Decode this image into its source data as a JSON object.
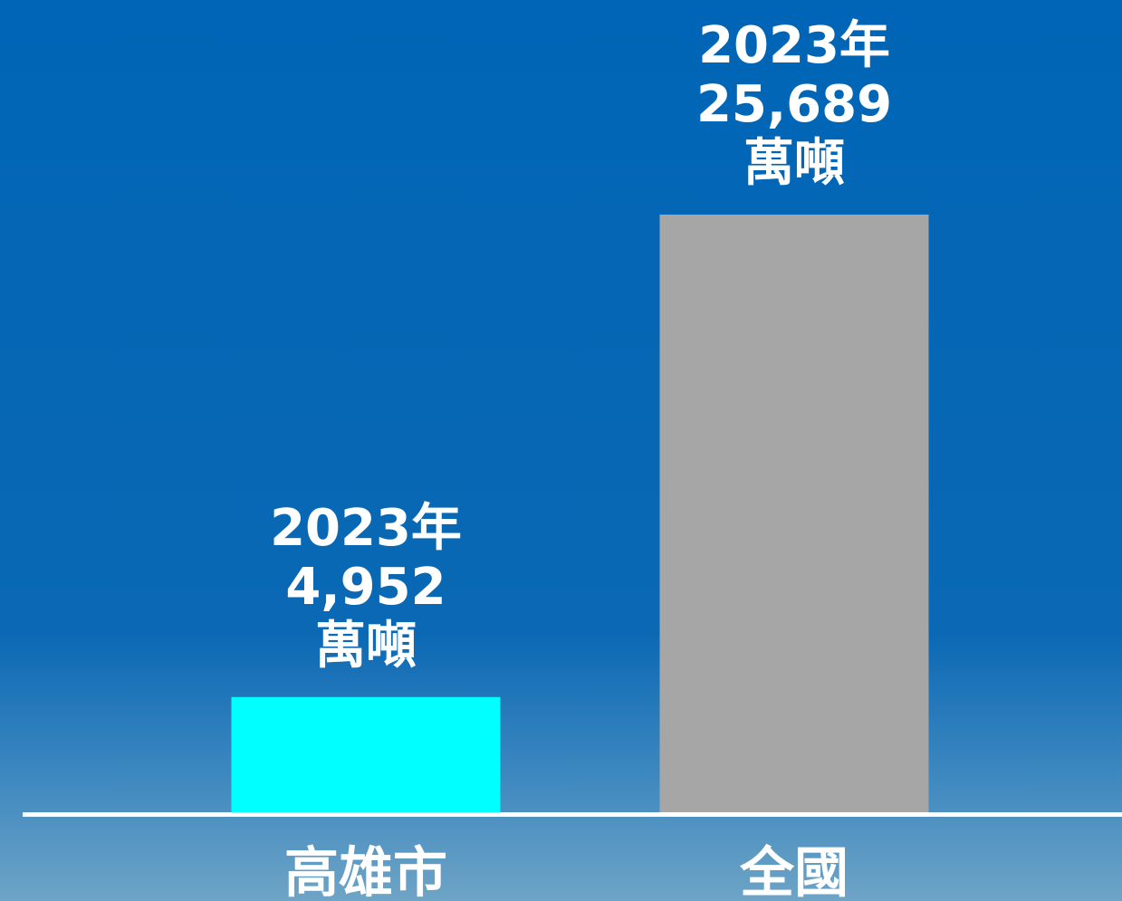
{
  "chart_data": {
    "type": "bar",
    "categories": [
      "高雄市",
      "全國"
    ],
    "values": [
      4952,
      25689
    ],
    "value_labels": [
      "4,952",
      "25,689"
    ],
    "label_year": "2023年",
    "unit": "萬噸",
    "colors": [
      "#00ffff",
      "#a6a6a6"
    ]
  }
}
